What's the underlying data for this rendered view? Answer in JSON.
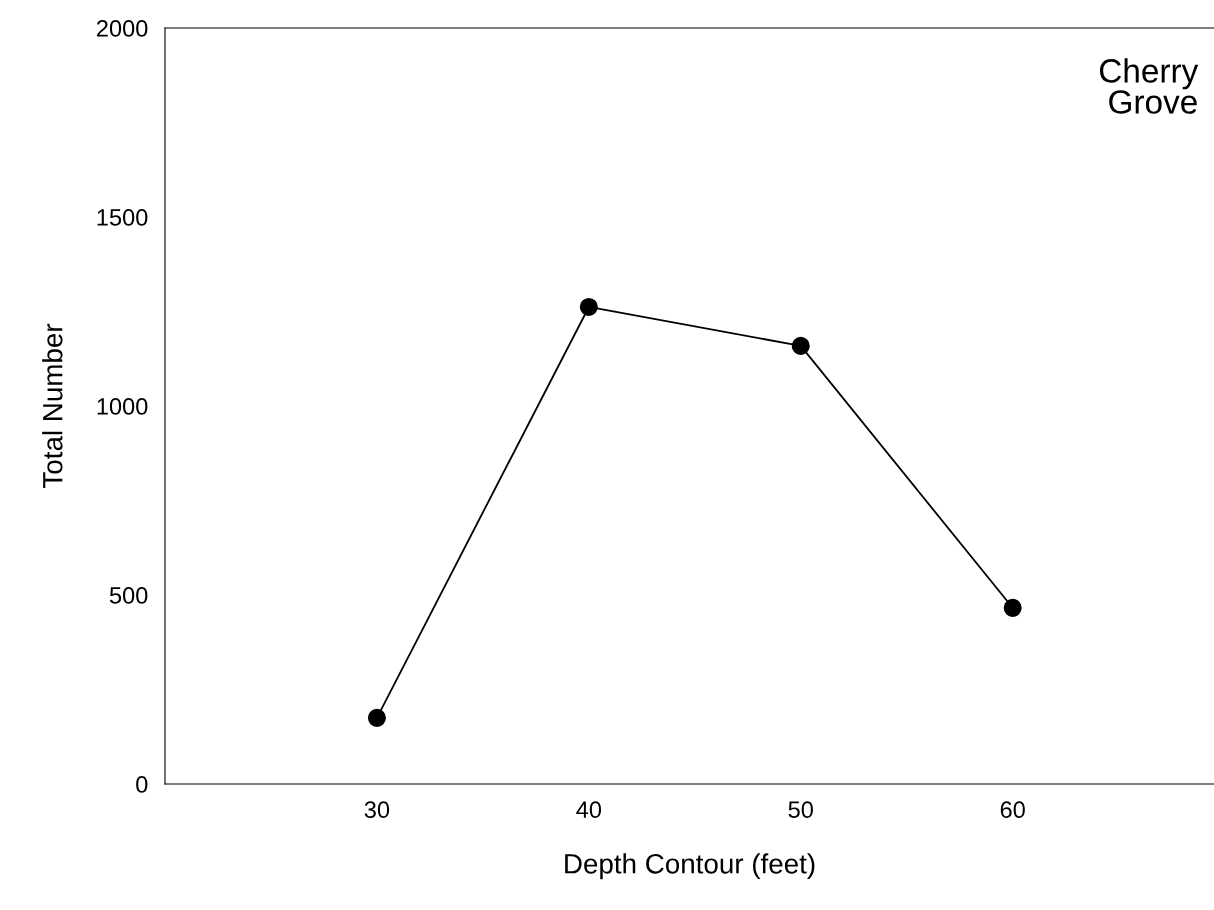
{
  "chart_data": {
    "type": "line",
    "xlabel": "Depth Contour (feet)",
    "ylabel": "Total Number",
    "x": [
      30,
      40,
      50,
      60
    ],
    "series": [
      {
        "color": "#000000",
        "values": [
          175,
          1262,
          1159,
          466
        ]
      }
    ],
    "xlim": [
      20,
      69.5
    ],
    "xticks": [
      30,
      40,
      50,
      60
    ],
    "ylim": [
      0,
      2000
    ],
    "yticks": [
      0,
      500,
      1000,
      1500,
      2000
    ],
    "marker": "circle",
    "line_style": "solid",
    "grid": false,
    "legend": false,
    "annotations": [
      "Cherry\nGrove"
    ]
  }
}
